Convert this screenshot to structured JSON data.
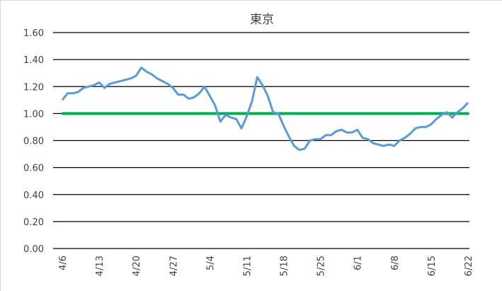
{
  "chart_data": {
    "type": "line",
    "title": "東京",
    "categories": [
      "4/6",
      null,
      null,
      null,
      null,
      null,
      null,
      "4/13",
      null,
      null,
      null,
      null,
      null,
      null,
      "4/20",
      null,
      null,
      null,
      null,
      null,
      null,
      "4/27",
      null,
      null,
      null,
      null,
      null,
      null,
      "5/4",
      null,
      null,
      null,
      null,
      null,
      null,
      "5/11",
      null,
      null,
      null,
      null,
      null,
      null,
      "5/18",
      null,
      null,
      null,
      null,
      null,
      null,
      "5/25",
      null,
      null,
      null,
      null,
      null,
      null,
      "6/1",
      null,
      null,
      null,
      null,
      null,
      null,
      "6/8",
      null,
      null,
      null,
      null,
      null,
      null,
      "6/15",
      null,
      null,
      null,
      null,
      null,
      null,
      "6/22"
    ],
    "series": [
      {
        "color": "#5b9bd5",
        "values": [
          1.1,
          1.15,
          1.15,
          1.16,
          1.19,
          1.2,
          1.21,
          1.23,
          1.19,
          1.22,
          1.23,
          1.24,
          1.25,
          1.26,
          1.28,
          1.34,
          1.31,
          1.29,
          1.26,
          1.24,
          1.22,
          1.19,
          1.14,
          1.14,
          1.11,
          1.12,
          1.15,
          1.2,
          1.13,
          1.06,
          0.94,
          0.99,
          0.97,
          0.96,
          0.89,
          0.98,
          1.09,
          1.27,
          1.21,
          1.13,
          1.01,
          1.0,
          0.91,
          0.83,
          0.76,
          0.73,
          0.74,
          0.8,
          0.81,
          0.81,
          0.84,
          0.84,
          0.87,
          0.88,
          0.86,
          0.86,
          0.88,
          0.82,
          0.81,
          0.78,
          0.77,
          0.76,
          0.77,
          0.76,
          0.8,
          0.82,
          0.85,
          0.89,
          0.9,
          0.9,
          0.92,
          0.96,
          0.99,
          1.01,
          0.97,
          1.01,
          1.04,
          1.08
        ]
      }
    ],
    "reference_lines": [
      {
        "value": 1,
        "color": "#00b050"
      }
    ],
    "ylim": [
      0,
      1.6
    ],
    "yticks": [
      {
        "value": 0,
        "label": "0.00"
      },
      {
        "value": 0.2,
        "label": "0.20"
      },
      {
        "value": 0.4,
        "label": "0.40"
      },
      {
        "value": 0.6,
        "label": "0.60"
      },
      {
        "value": 0.8,
        "label": "0.80"
      },
      {
        "value": 1,
        "label": "1.00"
      },
      {
        "value": 1.2,
        "label": "1.20"
      },
      {
        "value": 1.4,
        "label": "1.40"
      },
      {
        "value": 1.6,
        "label": "1.60"
      }
    ],
    "grid": true
  }
}
